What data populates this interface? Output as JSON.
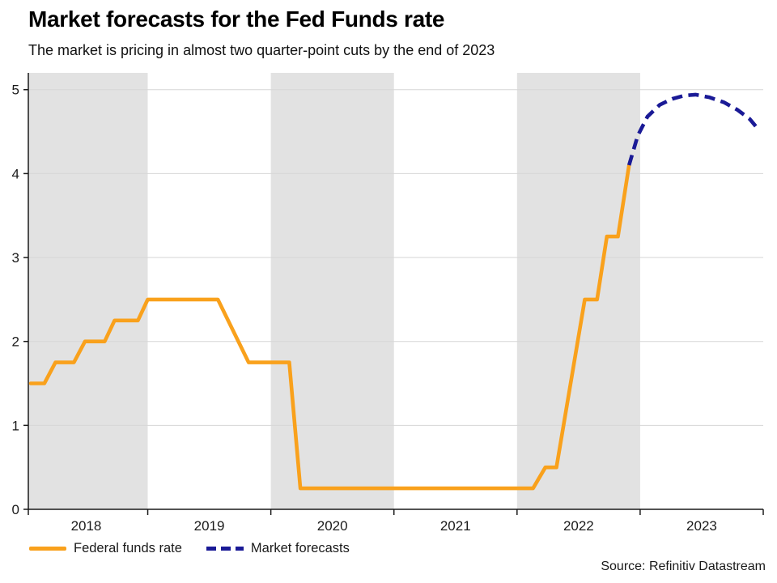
{
  "header": {
    "title": "Market forecasts for the Fed Funds rate",
    "subtitle": "The market is pricing in almost two quarter-point cuts by the end of 2023"
  },
  "chart_data": {
    "type": "line",
    "title": "Market forecasts for the Fed Funds rate",
    "subtitle": "The market is pricing in almost two quarter-point cuts by the end of 2023",
    "xlabel": "",
    "ylabel": "",
    "x_domain": [
      2018.03,
      2024.0
    ],
    "ylim": [
      0,
      5.2
    ],
    "yticks": [
      0,
      1,
      2,
      3,
      4,
      5
    ],
    "xtick_years": [
      2018,
      2019,
      2020,
      2021,
      2022,
      2023
    ],
    "year_boundary_ticks": [
      2019,
      2020,
      2021,
      2022,
      2023
    ],
    "shaded_years": [
      2018,
      2020,
      2022
    ],
    "grid": "horizontal",
    "legend_position": "bottom-left",
    "colors": {
      "band": "#e2e2e2",
      "grid": "#d6d6d6",
      "axis": "#1a1a1a",
      "tick_text": "#1a1a1a",
      "federal_funds": "#F9A11C",
      "forecast": "#1A1A96"
    },
    "series": [
      {
        "name": "Federal funds rate",
        "color": "#F9A11C",
        "style": "solid",
        "points": [
          [
            2018.05,
            1.5
          ],
          [
            2018.16,
            1.5
          ],
          [
            2018.25,
            1.75
          ],
          [
            2018.4,
            1.75
          ],
          [
            2018.49,
            2.0
          ],
          [
            2018.65,
            2.0
          ],
          [
            2018.73,
            2.25
          ],
          [
            2018.92,
            2.25
          ],
          [
            2019.0,
            2.5
          ],
          [
            2019.57,
            2.5
          ],
          [
            2019.82,
            1.75
          ],
          [
            2020.15,
            1.75
          ],
          [
            2020.24,
            0.25
          ],
          [
            2022.13,
            0.25
          ],
          [
            2022.23,
            0.5
          ],
          [
            2022.32,
            0.5
          ],
          [
            2022.55,
            2.5
          ],
          [
            2022.65,
            2.5
          ],
          [
            2022.73,
            3.25
          ],
          [
            2022.82,
            3.25
          ],
          [
            2022.91,
            4.1
          ]
        ]
      },
      {
        "name": "Market forecasts",
        "color": "#1A1A96",
        "style": "dashed",
        "points": [
          [
            2022.91,
            4.1
          ],
          [
            2022.98,
            4.45
          ],
          [
            2023.06,
            4.68
          ],
          [
            2023.16,
            4.82
          ],
          [
            2023.26,
            4.89
          ],
          [
            2023.36,
            4.93
          ],
          [
            2023.45,
            4.94
          ],
          [
            2023.56,
            4.91
          ],
          [
            2023.68,
            4.85
          ],
          [
            2023.79,
            4.76
          ],
          [
            2023.89,
            4.65
          ],
          [
            2023.97,
            4.51
          ]
        ]
      }
    ]
  },
  "legend": {
    "items": [
      {
        "label": "Federal funds rate"
      },
      {
        "label": "Market forecasts"
      }
    ]
  },
  "source": {
    "text": "Source: Refinitiv Datastream"
  }
}
